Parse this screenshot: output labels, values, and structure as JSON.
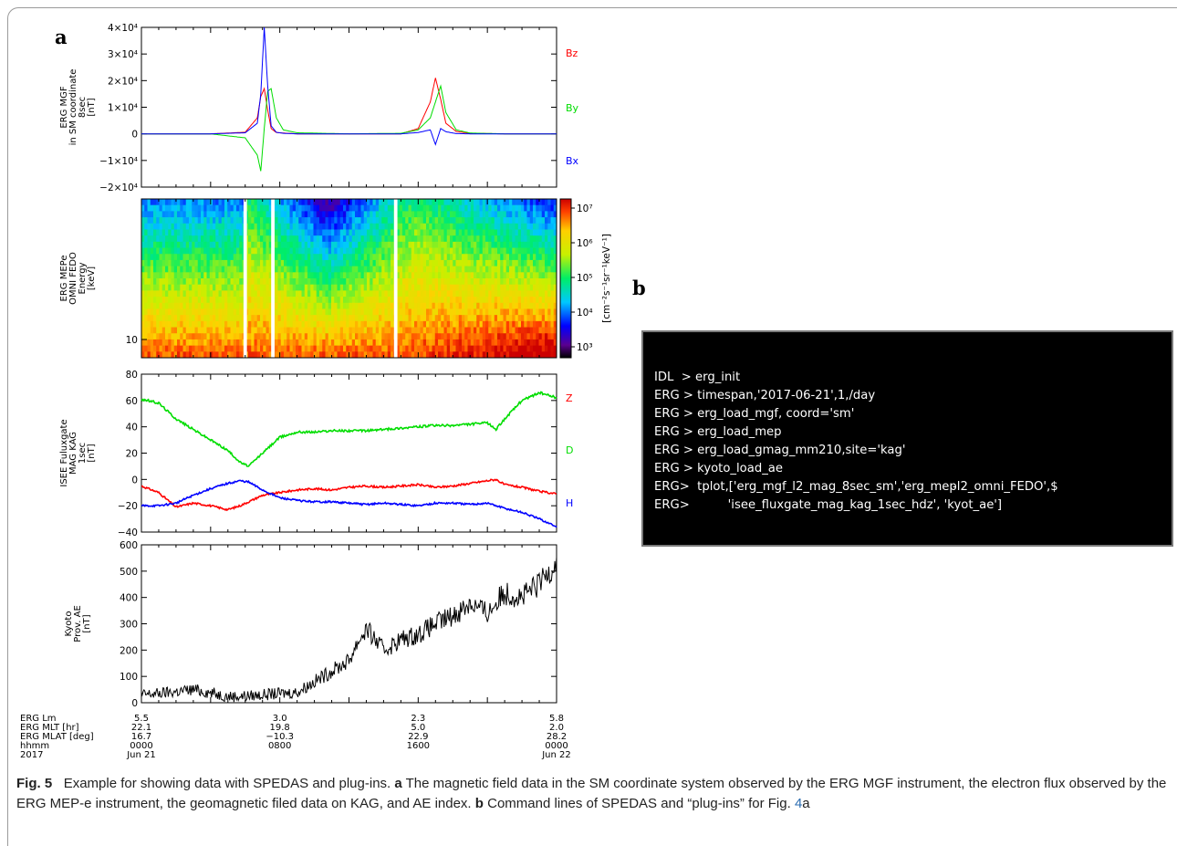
{
  "panel_labels": {
    "a": "a",
    "b": "b"
  },
  "colors": {
    "red": "#ff0000",
    "green": "#00dd00",
    "blue": "#0000ff",
    "line_black": "#000000"
  },
  "chart_data": [
    {
      "type": "line",
      "ylabel_lines": [
        "ERG MGF",
        "in SM coordinate",
        "8sec",
        "[nT]"
      ],
      "x": [
        0,
        2,
        4,
        6,
        6.7,
        6.9,
        7.1,
        7.3,
        7.5,
        7.8,
        8.2,
        9,
        12,
        15,
        16,
        16.7,
        17,
        17.3,
        17.6,
        18.2,
        19,
        21,
        24
      ],
      "series": [
        {
          "name": "Bz",
          "color": "#ff0000",
          "values": [
            0,
            0,
            0,
            600,
            6000,
            14000,
            17000,
            9000,
            2000,
            500,
            300,
            0,
            0,
            0,
            2000,
            12000,
            21000,
            13000,
            4000,
            900,
            200,
            0,
            0
          ]
        },
        {
          "name": "By",
          "color": "#00dd00",
          "values": [
            0,
            0,
            0,
            -1500,
            -8000,
            -14000,
            2000,
            16000,
            17000,
            6000,
            1500,
            400,
            0,
            200,
            1500,
            6000,
            12000,
            18000,
            8000,
            1500,
            300,
            0,
            0
          ]
        },
        {
          "name": "Bx",
          "color": "#0000ff",
          "values": [
            0,
            0,
            0,
            400,
            4000,
            15000,
            40000,
            18000,
            3000,
            600,
            200,
            0,
            0,
            0,
            500,
            1500,
            -4000,
            2000,
            800,
            100,
            0,
            0,
            0
          ]
        }
      ],
      "yticks": [
        "4×10⁴",
        "3×10⁴",
        "2×10⁴",
        "1×10⁴",
        "0",
        "−1×10⁴",
        "−2×10⁴"
      ],
      "ylim": [
        -20000,
        40000
      ]
    },
    {
      "type": "heatmap",
      "ylabel_lines": [
        "ERG MEPe",
        "OMNI FEDO",
        "Energy",
        "[keV]"
      ],
      "ytick": "10",
      "colorbar_ticks": [
        "10⁷",
        "10⁶",
        "10⁵",
        "10⁴",
        "10³"
      ],
      "colorbar_label": "[cm⁻²s⁻¹sr⁻¹keV⁻¹]",
      "log10_range": [
        3,
        7
      ],
      "data_gaps_hours": [
        [
          5.9,
          6.1
        ],
        [
          7.5,
          7.7
        ],
        [
          14.6,
          14.8
        ]
      ]
    },
    {
      "type": "line",
      "ylabel_lines": [
        "ISEE Fuluxgate",
        "MAG KAG",
        "1sec",
        "[nT]"
      ],
      "x": [
        0,
        1,
        2,
        3,
        4,
        5,
        5.7,
        6.2,
        7,
        8,
        9,
        10,
        11,
        12,
        13,
        14,
        15,
        16,
        17,
        18,
        19,
        20,
        20.5,
        21,
        22,
        23,
        24
      ],
      "series": [
        {
          "name": "Z",
          "color": "#ff0000",
          "values": [
            -5,
            -10,
            -21,
            -18,
            -20,
            -23,
            -20,
            -17,
            -12,
            -10,
            -8,
            -7,
            -8,
            -6,
            -5,
            -6,
            -5,
            -4,
            -6,
            -5,
            -3,
            -1,
            0,
            -4,
            -6,
            -9,
            -11
          ]
        },
        {
          "name": "D",
          "color": "#00dd00",
          "values": [
            61,
            58,
            46,
            38,
            30,
            22,
            13,
            10,
            20,
            32,
            36,
            36,
            37,
            37,
            37,
            38,
            39,
            40,
            41,
            41,
            42,
            43,
            38,
            46,
            60,
            66,
            62
          ]
        },
        {
          "name": "H",
          "color": "#0000ff",
          "values": [
            -20,
            -20,
            -18,
            -12,
            -7,
            -3,
            -1,
            -2,
            -8,
            -14,
            -16,
            -17,
            -17,
            -18,
            -19,
            -18,
            -19,
            -20,
            -18,
            -18,
            -19,
            -18,
            -20,
            -22,
            -25,
            -30,
            -36
          ]
        }
      ],
      "yticks": [
        "80",
        "60",
        "40",
        "20",
        "0",
        "−20",
        "−40"
      ],
      "ylim": [
        -40,
        80
      ]
    },
    {
      "type": "line",
      "ylabel_lines": [
        "Kyoto",
        "Prov. AE",
        "[nT]"
      ],
      "x": [
        0,
        1,
        2,
        3,
        4,
        5,
        6,
        7,
        8,
        9,
        10,
        11,
        12,
        12.5,
        13,
        14,
        15,
        16,
        17,
        18,
        19,
        20,
        21,
        22,
        23,
        24
      ],
      "series": [
        {
          "name": "AE",
          "color": "#000000",
          "values": [
            30,
            35,
            42,
            50,
            38,
            24,
            25,
            30,
            35,
            40,
            80,
            120,
            160,
            230,
            280,
            200,
            240,
            260,
            300,
            330,
            380,
            340,
            420,
            400,
            450,
            540
          ]
        }
      ],
      "yticks": [
        "600",
        "500",
        "400",
        "300",
        "200",
        "100",
        "0"
      ],
      "ylim": [
        0,
        600
      ]
    }
  ],
  "xaxis": {
    "row_labels": [
      "ERG Lm",
      "ERG MLT [hr]",
      "ERG MLAT [deg]",
      "hhmm",
      "2017"
    ],
    "columns": [
      {
        "hour": 0,
        "values": [
          "5.5",
          "22.1",
          "16.7",
          "0000",
          "Jun 21"
        ]
      },
      {
        "hour": 8,
        "values": [
          "3.0",
          "19.8",
          "−10.3",
          "0800",
          ""
        ]
      },
      {
        "hour": 16,
        "values": [
          "2.3",
          "5.0",
          "22.9",
          "1600",
          ""
        ]
      },
      {
        "hour": 24,
        "values": [
          "5.8",
          "2.0",
          "28.2",
          "0000",
          "Jun 22"
        ]
      }
    ]
  },
  "terminal": {
    "lines": [
      "IDL  > erg_init",
      "ERG > timespan,'2017-06-21',1,/day",
      "ERG > erg_load_mgf, coord='sm'",
      "ERG > erg_load_mep",
      "ERG > erg_load_gmag_mm210,site='kag'",
      "ERG > kyoto_load_ae",
      "ERG>  tplot,['erg_mgf_l2_mag_8sec_sm','erg_mep̵l2_omni_FEDO',$",
      "ERG>          'isee_fluxgate_mag_kag_1sec_hdz', 'kyot_ae']"
    ]
  },
  "caption": {
    "fig": "Fig. 5",
    "intro": "Example for showing data with SPEDAS and plug-ins.",
    "a_label": "a",
    "a_text": "The magnetic field data in the SM coordinate system observed by the ERG MGF instrument, the electron flux observed by the ERG MEP-e instrument, the geomagnetic filed data on KAG, and AE index.",
    "b_label": "b",
    "b_text": "Command lines of SPEDAS and “plug-ins” for Fig.",
    "ref": "4",
    "ref_suffix": "a"
  }
}
